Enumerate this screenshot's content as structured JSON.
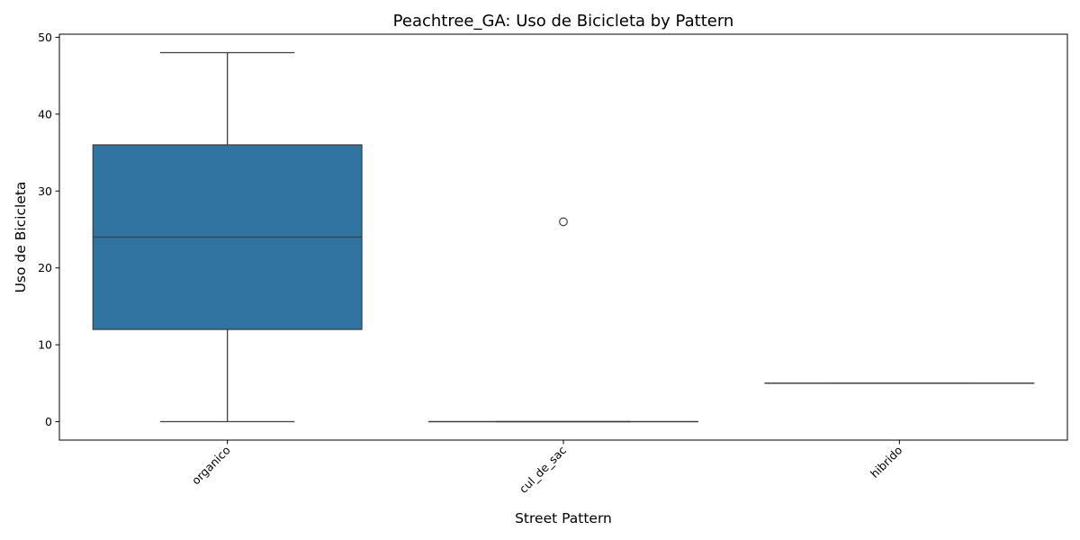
{
  "chart_data": {
    "type": "box",
    "title": "Peachtree_GA: Uso de Bicicleta by Pattern",
    "xlabel": "Street Pattern",
    "ylabel": "Uso de Bicicleta",
    "categories": [
      "organico",
      "cul_de_sac",
      "hibrido"
    ],
    "ylim": [
      -2.4,
      50.4
    ],
    "yticks": [
      0,
      10,
      20,
      30,
      40,
      50
    ],
    "boxes": [
      {
        "category": "organico",
        "min": 0,
        "q1": 12,
        "median": 24,
        "q3": 36,
        "max": 48,
        "outliers": [],
        "color": "#3274a1"
      },
      {
        "category": "cul_de_sac",
        "min": 0,
        "q1": 0,
        "median": 0,
        "q3": 0,
        "max": 0,
        "outliers": [
          26
        ],
        "color": "#e1812c"
      },
      {
        "category": "hibrido",
        "min": 5,
        "q1": 5,
        "median": 5,
        "q3": 5,
        "max": 5,
        "outliers": [],
        "color": "#3a923a"
      }
    ],
    "x_tick_rotation": 45,
    "grid": false
  }
}
